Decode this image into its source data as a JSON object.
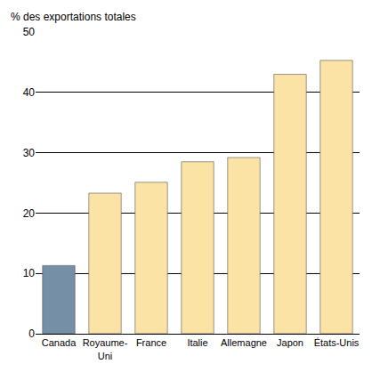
{
  "chart_data": {
    "type": "bar",
    "ylabel": "% des exportations totales",
    "categories": [
      "Canada",
      "Royaume-Uni",
      "France",
      "Italie",
      "Allemagne",
      "Japon",
      "États-Unis"
    ],
    "values": [
      11.3,
      23.3,
      25.1,
      28.5,
      29.2,
      43.0,
      45.3
    ],
    "colors": [
      "#7590a6",
      "#fbe3a6",
      "#fbe3a6",
      "#fbe3a6",
      "#fbe3a6",
      "#fbe3a6",
      "#fbe3a6"
    ],
    "ylim": [
      0,
      50
    ],
    "yticks": [
      0,
      10,
      20,
      30,
      40,
      50
    ],
    "grid": true
  }
}
